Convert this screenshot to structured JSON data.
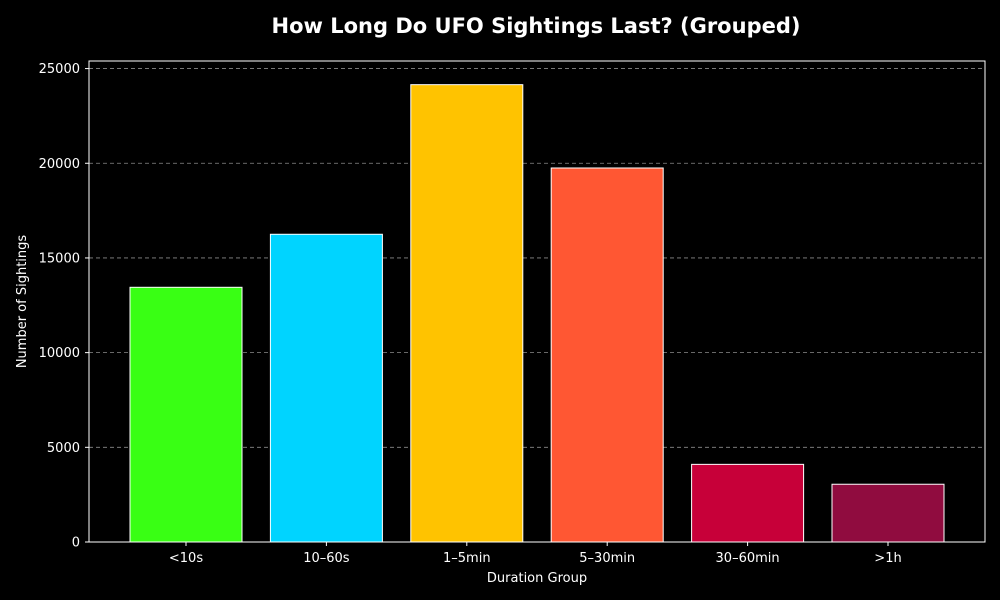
{
  "chart_data": {
    "type": "bar",
    "title": "How Long Do UFO Sightings Last? (Grouped)",
    "xlabel": "Duration Group",
    "ylabel": "Number of Sightings",
    "categories": [
      "<10s",
      "10–60s",
      "1–5min",
      "5–30min",
      "30–60min",
      ">1h"
    ],
    "values": [
      13450,
      16250,
      24150,
      19750,
      4100,
      3050
    ],
    "colors": [
      "#39ff14",
      "#00d4ff",
      "#ffc300",
      "#ff5733",
      "#c70039",
      "#900c3f"
    ],
    "ylim": [
      0,
      25400
    ],
    "yticks": [
      0,
      5000,
      10000,
      15000,
      20000,
      25000
    ],
    "grid": "y-dashed",
    "background": "#000000",
    "bar_edge_color": "#ffffff"
  }
}
